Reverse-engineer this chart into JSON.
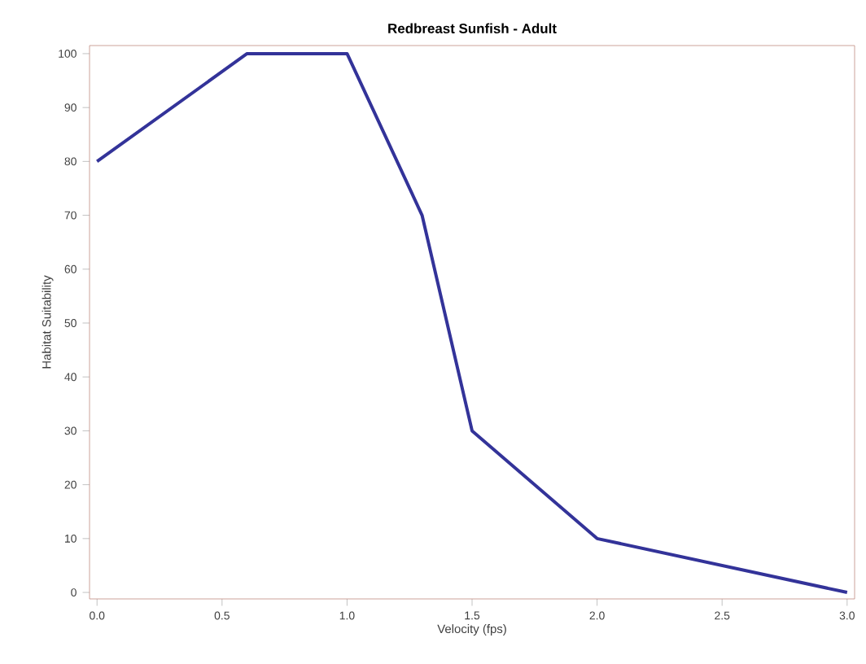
{
  "chart_data": {
    "type": "line",
    "title": "Redbreast Sunfish - Adult",
    "xlabel": "Velocity (fps)",
    "ylabel": "Habitat Suitability",
    "x": [
      0,
      0.6,
      1.0,
      1.3,
      1.5,
      2.0,
      3.0
    ],
    "series": [
      {
        "color": "#333399",
        "values": [
          80,
          100,
          100,
          70,
          30,
          10,
          0
        ]
      }
    ],
    "xlim": [
      -0.03,
      3.03
    ],
    "ylim": [
      -1.2,
      101.5
    ],
    "xticks": [
      {
        "value": 0,
        "label": "0.0"
      },
      {
        "value": 0.5,
        "label": "0.5"
      },
      {
        "value": 1.0,
        "label": "1.0"
      },
      {
        "value": 1.5,
        "label": "1.5"
      },
      {
        "value": 2.0,
        "label": "2.0"
      },
      {
        "value": 2.5,
        "label": "2.5"
      },
      {
        "value": 3.0,
        "label": "3.0"
      }
    ],
    "yticks": [
      0,
      10,
      20,
      30,
      40,
      50,
      60,
      70,
      80,
      90,
      100
    ],
    "grid": false,
    "marker": "none",
    "line_style": "solid"
  }
}
